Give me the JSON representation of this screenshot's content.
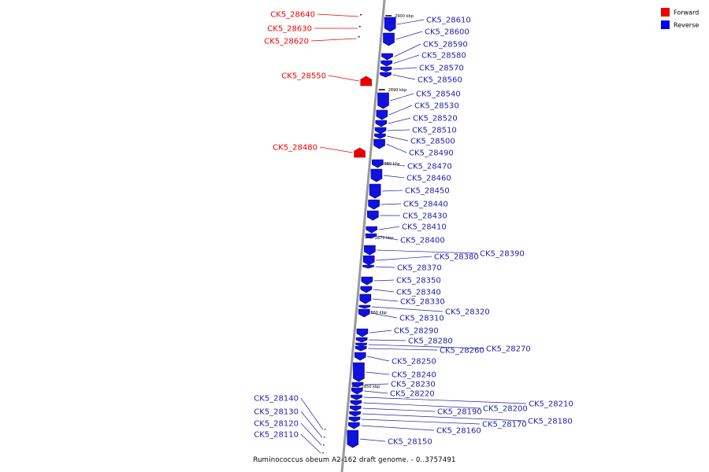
{
  "caption": "Ruminococcus obeum A2-162 draft genome. - 0..3757491",
  "legend": [
    {
      "label": "Forward",
      "color": "#ee0000"
    },
    {
      "label": "Reverse",
      "color": "#0000ee"
    }
  ],
  "colors": {
    "forward": "#ee0000",
    "reverse": "#1111dd",
    "backbone": "#999999",
    "label": "#2222aa"
  },
  "kbp_ticks": [
    "2900 kbp",
    "2890 kbp",
    "2880 kbp",
    "2870 kbp",
    "2860 kbp",
    "2850 kbp"
  ],
  "genes": [
    {
      "name": "CK5_28640",
      "strand": "forward"
    },
    {
      "name": "CK5_28630",
      "strand": "forward"
    },
    {
      "name": "CK5_28620",
      "strand": "forward"
    },
    {
      "name": "CK5_28610",
      "strand": "reverse"
    },
    {
      "name": "CK5_28600",
      "strand": "reverse"
    },
    {
      "name": "CK5_28590",
      "strand": "reverse"
    },
    {
      "name": "CK5_28580",
      "strand": "reverse"
    },
    {
      "name": "CK5_28570",
      "strand": "reverse"
    },
    {
      "name": "CK5_28560",
      "strand": "reverse"
    },
    {
      "name": "CK5_28550",
      "strand": "forward"
    },
    {
      "name": "CK5_28540",
      "strand": "reverse"
    },
    {
      "name": "CK5_28530",
      "strand": "reverse"
    },
    {
      "name": "CK5_28520",
      "strand": "reverse"
    },
    {
      "name": "CK5_28510",
      "strand": "reverse"
    },
    {
      "name": "CK5_28500",
      "strand": "reverse"
    },
    {
      "name": "CK5_28490",
      "strand": "reverse"
    },
    {
      "name": "CK5_28480",
      "strand": "forward"
    },
    {
      "name": "CK5_28470",
      "strand": "reverse"
    },
    {
      "name": "CK5_28460",
      "strand": "reverse"
    },
    {
      "name": "CK5_28450",
      "strand": "reverse"
    },
    {
      "name": "CK5_28440",
      "strand": "reverse"
    },
    {
      "name": "CK5_28430",
      "strand": "reverse"
    },
    {
      "name": "CK5_28410",
      "strand": "reverse"
    },
    {
      "name": "CK5_28400",
      "strand": "reverse"
    },
    {
      "name": "CK5_28390",
      "strand": "reverse"
    },
    {
      "name": "CK5_28380",
      "strand": "reverse"
    },
    {
      "name": "CK5_28370",
      "strand": "reverse"
    },
    {
      "name": "CK5_28350",
      "strand": "reverse"
    },
    {
      "name": "CK5_28340",
      "strand": "reverse"
    },
    {
      "name": "CK5_28330",
      "strand": "reverse"
    },
    {
      "name": "CK5_28320",
      "strand": "reverse"
    },
    {
      "name": "CK5_28310",
      "strand": "reverse"
    },
    {
      "name": "CK5_28290",
      "strand": "reverse"
    },
    {
      "name": "CK5_28280",
      "strand": "reverse"
    },
    {
      "name": "CK5_28270",
      "strand": "reverse"
    },
    {
      "name": "CK5_28260",
      "strand": "reverse"
    },
    {
      "name": "CK5_28250",
      "strand": "reverse"
    },
    {
      "name": "CK5_28240",
      "strand": "reverse"
    },
    {
      "name": "CK5_28230",
      "strand": "reverse"
    },
    {
      "name": "CK5_28220",
      "strand": "reverse"
    },
    {
      "name": "CK5_28210",
      "strand": "reverse"
    },
    {
      "name": "CK5_28200",
      "strand": "reverse"
    },
    {
      "name": "CK5_28190",
      "strand": "reverse"
    },
    {
      "name": "CK5_28180",
      "strand": "reverse"
    },
    {
      "name": "CK5_28170",
      "strand": "reverse"
    },
    {
      "name": "CK5_28160",
      "strand": "reverse"
    },
    {
      "name": "CK5_28150",
      "strand": "reverse"
    },
    {
      "name": "CK5_28140",
      "strand": "reverse"
    },
    {
      "name": "CK5_28130",
      "strand": "reverse"
    },
    {
      "name": "CK5_28120",
      "strand": "reverse"
    },
    {
      "name": "CK5_28110",
      "strand": "reverse"
    }
  ]
}
